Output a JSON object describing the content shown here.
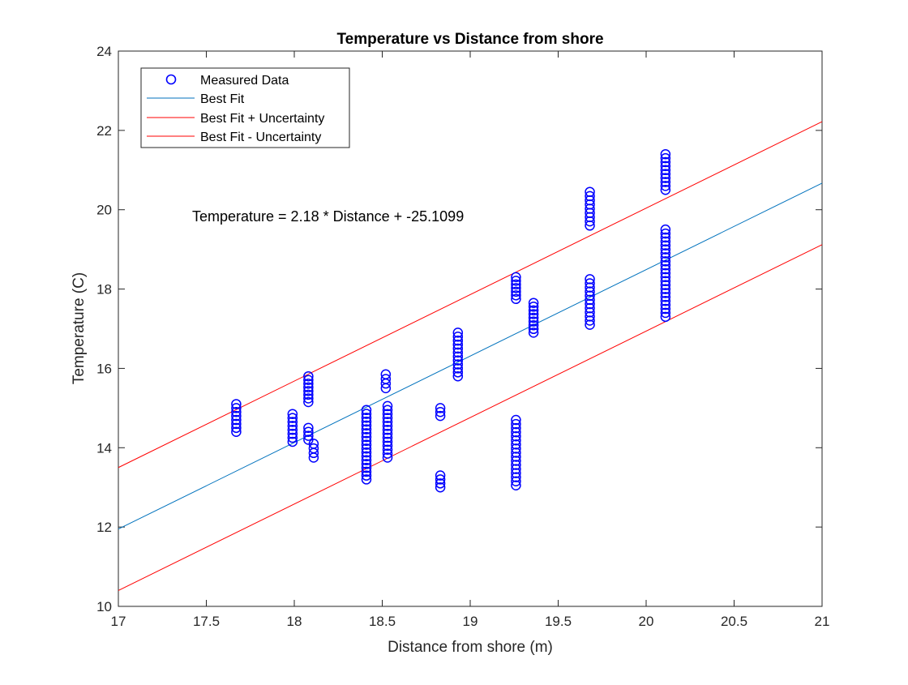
{
  "figure": {
    "background": "#ffffff"
  },
  "chart_data": {
    "type": "scatter",
    "title": "Temperature vs Distance from shore",
    "xlabel": "Distance from shore (m)",
    "ylabel": "Temperature (C)",
    "xlim": [
      17,
      21
    ],
    "ylim": [
      10,
      24
    ],
    "xticks": [
      17,
      17.5,
      18,
      18.5,
      19,
      19.5,
      20,
      20.5,
      21
    ],
    "xtick_labels": [
      "17",
      "17.5",
      "18",
      "18.5",
      "19",
      "19.5",
      "20",
      "20.5",
      "21"
    ],
    "yticks": [
      10,
      12,
      14,
      16,
      18,
      20,
      22,
      24
    ],
    "ytick_labels": [
      "10",
      "12",
      "14",
      "16",
      "18",
      "20",
      "22",
      "24"
    ],
    "grid": false,
    "legend_position": "top-left",
    "annotation": {
      "text": "Temperature = 2.18 * Distance + -25.1099",
      "x": 17.4,
      "y": 19.8
    },
    "colors": {
      "measured": "#0000ff",
      "best_fit": "#0072bd",
      "uncertainty": "#ff0000",
      "axis": "#262626"
    },
    "series": [
      {
        "name": "Measured Data",
        "kind": "scatter",
        "marker": "circle",
        "clusters": [
          {
            "x": 17.67,
            "ymin": 14.4,
            "ymax": 15.1
          },
          {
            "x": 17.99,
            "ymin": 14.15,
            "ymax": 14.85
          },
          {
            "x": 18.08,
            "ymin": 14.2,
            "ymax": 14.5
          },
          {
            "x": 18.08,
            "ymin": 15.15,
            "ymax": 15.8
          },
          {
            "x": 18.11,
            "ymin": 13.75,
            "ymax": 14.1
          },
          {
            "x": 18.41,
            "ymin": 13.2,
            "ymax": 14.95
          },
          {
            "x": 18.52,
            "ymin": 15.5,
            "ymax": 15.85
          },
          {
            "x": 18.53,
            "ymin": 13.75,
            "ymax": 15.05
          },
          {
            "x": 18.83,
            "ymin": 14.8,
            "ymax": 15.0
          },
          {
            "x": 18.83,
            "ymin": 13.0,
            "ymax": 13.3
          },
          {
            "x": 18.93,
            "ymin": 15.8,
            "ymax": 16.9
          },
          {
            "x": 19.26,
            "ymin": 17.75,
            "ymax": 18.3
          },
          {
            "x": 19.26,
            "ymin": 13.05,
            "ymax": 14.7
          },
          {
            "x": 19.36,
            "ymin": 16.9,
            "ymax": 17.65
          },
          {
            "x": 19.68,
            "ymin": 19.6,
            "ymax": 20.45
          },
          {
            "x": 19.68,
            "ymin": 17.1,
            "ymax": 18.25
          },
          {
            "x": 20.11,
            "ymin": 20.5,
            "ymax": 21.4
          },
          {
            "x": 20.11,
            "ymin": 17.3,
            "ymax": 19.5
          }
        ]
      },
      {
        "name": "Best Fit",
        "kind": "line",
        "x": [
          17,
          21
        ],
        "y": [
          11.95,
          20.67
        ]
      },
      {
        "name": "Best Fit + Uncertainty",
        "kind": "line",
        "x": [
          17,
          21
        ],
        "y": [
          13.5,
          22.22
        ]
      },
      {
        "name": "Best Fit - Uncertainty",
        "kind": "line",
        "x": [
          17,
          21
        ],
        "y": [
          10.4,
          19.12
        ]
      }
    ]
  }
}
